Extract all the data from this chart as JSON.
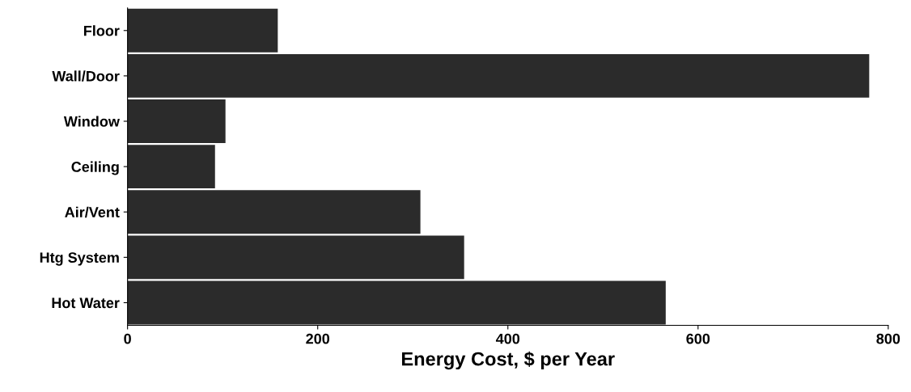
{
  "chart_data": {
    "type": "bar",
    "orientation": "horizontal",
    "xlabel": "Energy Cost, $ per Year",
    "categories": [
      "Floor",
      "Wall/Door",
      "Window",
      "Ceiling",
      "Air/Vent",
      "Htg System",
      "Hot Water"
    ],
    "values": [
      158,
      780,
      103,
      92,
      308,
      354,
      566
    ],
    "color": "#2b2b2b",
    "xlim": [
      0,
      800
    ],
    "xticks": [
      0,
      200,
      400,
      600,
      800
    ],
    "grid": false,
    "legend": false
  }
}
